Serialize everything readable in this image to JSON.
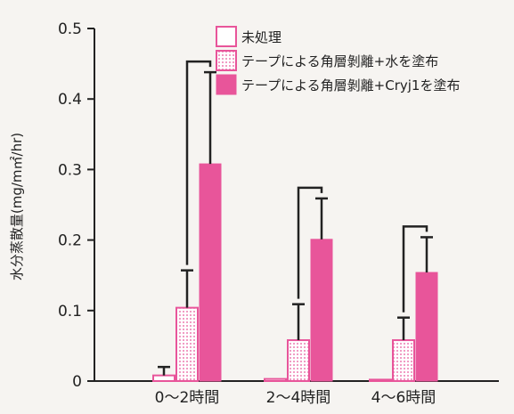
{
  "chart_data": {
    "type": "bar",
    "ylabel": "水分蒸散量(mg/m㎡/hr)",
    "ylim": [
      0,
      0.5
    ],
    "yticks": [
      {
        "value": 0,
        "label": "0"
      },
      {
        "value": 0.1,
        "label": "0.1"
      },
      {
        "value": 0.2,
        "label": "0.2"
      },
      {
        "value": 0.3,
        "label": "0.3"
      },
      {
        "value": 0.4,
        "label": "0.4"
      },
      {
        "value": 0.5,
        "label": "0.5"
      }
    ],
    "categories": [
      "0〜2時間",
      "2〜4時間",
      "4〜6時間"
    ],
    "series": [
      {
        "name": "未処理",
        "values": [
          0.008,
          0.003,
          0.002
        ],
        "errors": [
          0.012,
          0.0,
          0.0
        ],
        "style": "outline",
        "color": "#e8559a"
      },
      {
        "name": "テープによる角層剝離+水を塗布",
        "values": [
          0.104,
          0.058,
          0.058
        ],
        "errors": [
          0.053,
          0.051,
          0.032
        ],
        "style": "dotted",
        "color": "#e8559a"
      },
      {
        "name": "テープによる角層剝離+Cryj1を塗布",
        "values": [
          0.308,
          0.201,
          0.154
        ],
        "errors": [
          0.13,
          0.058,
          0.05
        ],
        "style": "solid",
        "color": "#e8559a"
      }
    ],
    "significance_brackets": [
      {
        "category": "0〜2時間",
        "from_series": 1,
        "to_series": 2
      },
      {
        "category": "2〜4時間",
        "from_series": 1,
        "to_series": 2
      },
      {
        "category": "4〜6時間",
        "from_series": 1,
        "to_series": 2
      }
    ],
    "legend_position": "top-right",
    "grid": false
  }
}
